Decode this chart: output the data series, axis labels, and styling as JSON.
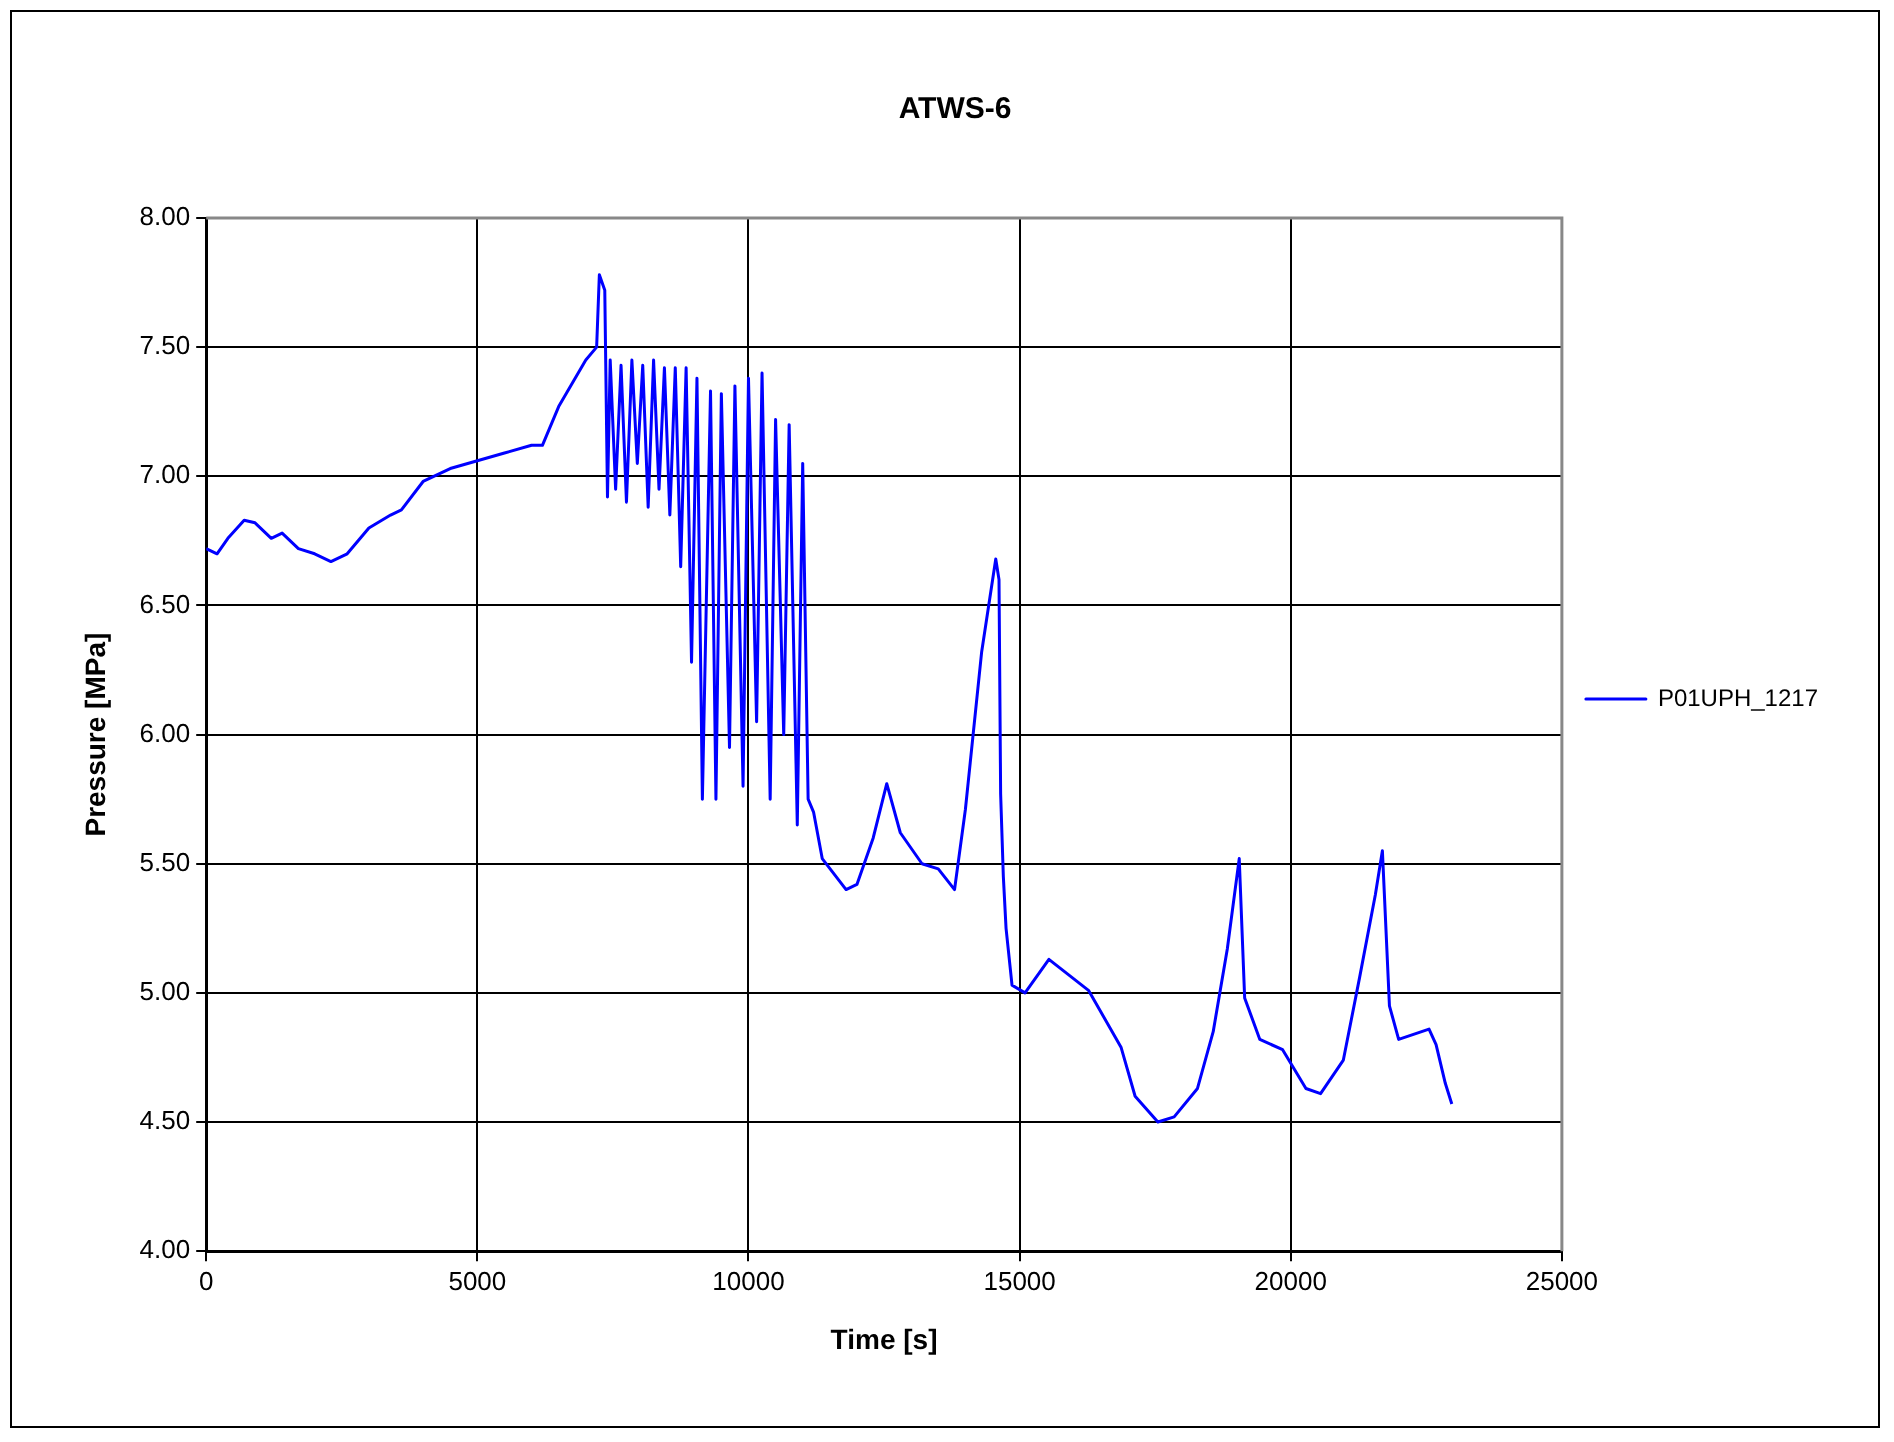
{
  "chart_data": {
    "type": "line",
    "title": "ATWS-6",
    "xlabel": "Time [s]",
    "ylabel": "Pressure [MPa]",
    "xlim": [
      0,
      25000
    ],
    "xticks": [
      0,
      5000,
      10000,
      15000,
      20000,
      25000
    ],
    "ylim": [
      4,
      8
    ],
    "yticks": [
      {
        "value": 4,
        "label": "4.00"
      },
      {
        "value": 4.5,
        "label": "4.50"
      },
      {
        "value": 5,
        "label": "5.00"
      },
      {
        "value": 5.5,
        "label": "5.50"
      },
      {
        "value": 6,
        "label": "6.00"
      },
      {
        "value": 6.5,
        "label": "6.50"
      },
      {
        "value": 7,
        "label": "7.00"
      },
      {
        "value": 7.5,
        "label": "7.50"
      },
      {
        "value": 8,
        "label": "8.00"
      }
    ],
    "grid": true,
    "legend": "right",
    "marker": "none",
    "line_style": "solid",
    "series": [
      {
        "name": "P01UPH_1217",
        "color": "#0000ff",
        "x": [
          0,
          200,
          400,
          700,
          900,
          1200,
          1400,
          1700,
          2000,
          2300,
          2600,
          3000,
          3400,
          3600,
          4000,
          4500,
          5000,
          5500,
          6000,
          6200,
          6500,
          7000,
          7200,
          7250,
          7350,
          7400,
          7450,
          7550,
          7650,
          7750,
          7850,
          7950,
          8050,
          8150,
          8250,
          8350,
          8450,
          8550,
          8650,
          8750,
          8850,
          8950,
          9050,
          9150,
          9300,
          9400,
          9500,
          9650,
          9750,
          9900,
          10000,
          10150,
          10250,
          10400,
          10500,
          10650,
          10750,
          10900,
          11000,
          11100,
          11200,
          11360,
          11800,
          12000,
          12300,
          12550,
          12800,
          13200,
          13500,
          13800,
          14000,
          14300,
          14560,
          14620,
          14650,
          14700,
          14750,
          14860,
          15100,
          15540,
          16270,
          16870,
          17130,
          17550,
          17850,
          18280,
          18570,
          18830,
          19050,
          19150,
          19430,
          19850,
          20280,
          20550,
          20970,
          21270,
          21560,
          21690,
          21820,
          21990,
          22550,
          22680,
          22850,
          22970
        ],
        "values": [
          6.72,
          6.7,
          6.76,
          6.83,
          6.82,
          6.76,
          6.78,
          6.72,
          6.7,
          6.67,
          6.7,
          6.8,
          6.85,
          6.87,
          6.98,
          7.03,
          7.06,
          7.09,
          7.12,
          7.12,
          7.27,
          7.45,
          7.5,
          7.78,
          7.72,
          6.92,
          7.45,
          6.95,
          7.43,
          6.9,
          7.45,
          7.05,
          7.43,
          6.88,
          7.45,
          6.95,
          7.42,
          6.85,
          7.42,
          6.65,
          7.42,
          6.28,
          7.38,
          5.75,
          7.33,
          5.75,
          7.32,
          5.95,
          7.35,
          5.8,
          7.38,
          6.05,
          7.4,
          5.75,
          7.22,
          6.0,
          7.2,
          5.65,
          7.05,
          5.75,
          5.7,
          5.52,
          5.4,
          5.42,
          5.6,
          5.81,
          5.62,
          5.5,
          5.48,
          5.4,
          5.71,
          6.32,
          6.68,
          6.6,
          5.77,
          5.45,
          5.25,
          5.03,
          5.0,
          5.13,
          5.01,
          4.79,
          4.6,
          4.5,
          4.52,
          4.63,
          4.85,
          5.17,
          5.52,
          4.98,
          4.82,
          4.78,
          4.63,
          4.61,
          4.74,
          5.06,
          5.38,
          5.55,
          4.95,
          4.82,
          4.86,
          4.8,
          4.65,
          4.57
        ]
      }
    ]
  }
}
